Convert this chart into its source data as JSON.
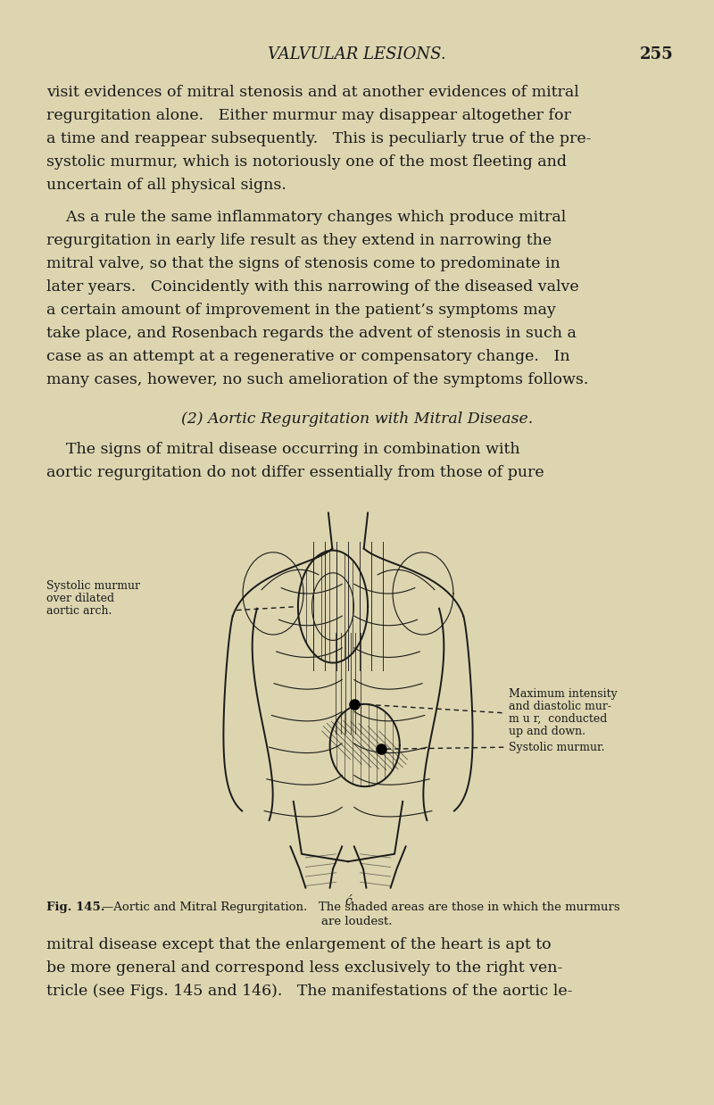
{
  "bg_color": "#ddd5b0",
  "page_width": 8.0,
  "page_height": 12.38,
  "dpi": 100,
  "header_text": "VALVULAR LESIONS.",
  "page_num": "255",
  "text_color": "#1a1a1a",
  "figure_line_color": "#1a1a1a",
  "para1_lines": [
    "visit evidences of mitral stenosis and at another evidences of mitral",
    "regurgitation alone.   Either murmur may disappear altogether for",
    "a time and reappear subsequently.   This is peculiarly true of the pre-",
    "systolic murmur, which is notoriously one of the most fleeting and",
    "uncertain of all physical signs."
  ],
  "para2_lines": [
    "    As a rule the same inflammatory changes which produce mitral",
    "regurgitation in early life result as they extend in narrowing the",
    "mitral valve, so that the signs of stenosis come to predominate in",
    "later years.   Coincidently with this narrowing of the diseased valve",
    "a certain amount of improvement in the patient’s symptoms may",
    "take place, and Rosenbach regards the advent of stenosis in such a",
    "case as an attempt at a regenerative or compensatory change.   In",
    "many cases, however, no such amelioration of the symptoms follows."
  ],
  "section_heading": "(2) Aortic Regurgitation with Mitral Disease.",
  "para3_lines": [
    "    The signs of mitral disease occurring in combination with",
    "aortic regurgitation do not differ essentially from those of pure"
  ],
  "para4_lines": [
    "mitral disease except that the enlargement of the heart is apt to",
    "be more general and correspond less exclusively to the right ven-",
    "tricle (see Figs. 145 and 146).   The manifestations of the aortic le-"
  ],
  "fig_caption_bold": "Fig. 145.",
  "fig_caption_rest": "—Aortic and Mitral Regurgitation.   The shaded areas are those in which the murmurs",
  "fig_caption_rest2": "are loudest.",
  "label_left": [
    "Systolic murmur",
    "over dilated",
    "aortic arch."
  ],
  "label_right_top": [
    "Maximum intensity",
    "and diastolic mur-",
    "m u r,  conducted",
    "up and down."
  ],
  "label_right_bot": "Systolic murmur."
}
